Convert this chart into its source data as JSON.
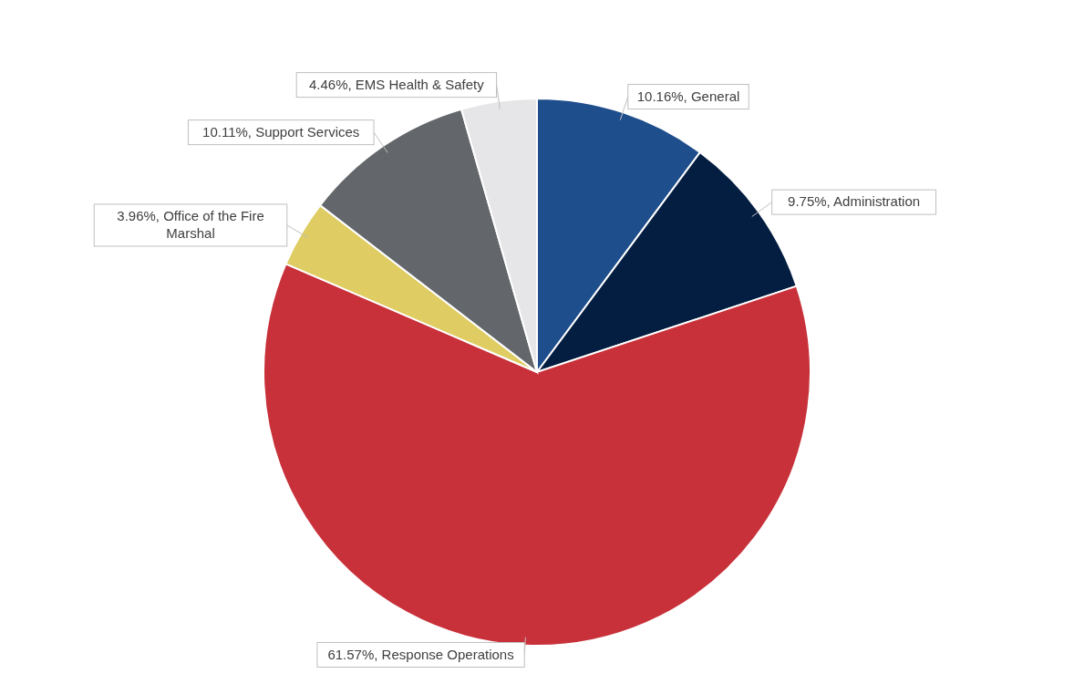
{
  "chart_data": {
    "type": "pie",
    "categories": [
      "General",
      "Administration",
      "Response Operations",
      "Office of the Fire Marshal",
      "Support Services",
      "EMS Health & Safety"
    ],
    "values": [
      10.16,
      9.75,
      61.57,
      3.96,
      10.11,
      4.46
    ],
    "value_labels": [
      "10.16%",
      "9.75%",
      "61.57%",
      "3.96%",
      "10.11%",
      "4.46%"
    ],
    "colors": [
      "#1f4e8c",
      "#041e42",
      "#c8313a",
      "#dfcc62",
      "#63666a",
      "#e6e5e7"
    ]
  }
}
